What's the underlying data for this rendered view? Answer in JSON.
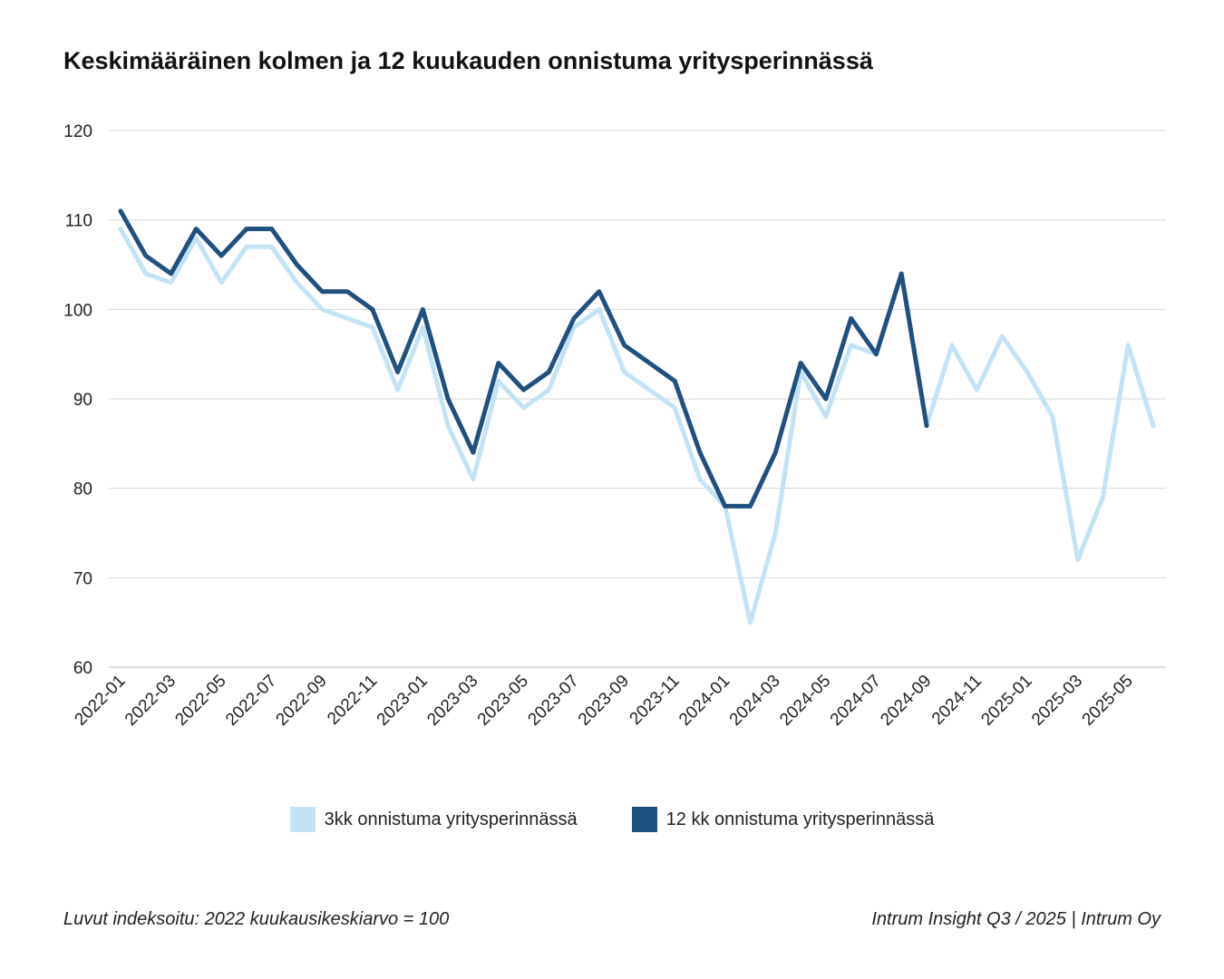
{
  "chart_data": {
    "type": "line",
    "title": "Keskimääräinen kolmen ja 12 kuukauden onnistuma yritysperinnässä",
    "xlabel": "",
    "ylabel": "",
    "ylim": [
      60,
      120
    ],
    "yticks": [
      60,
      70,
      80,
      90,
      100,
      110,
      120
    ],
    "x": [
      "2022-01",
      "2022-02",
      "2022-03",
      "2022-04",
      "2022-05",
      "2022-06",
      "2022-07",
      "2022-08",
      "2022-09",
      "2022-10",
      "2022-11",
      "2022-12",
      "2023-01",
      "2023-02",
      "2023-03",
      "2023-04",
      "2023-05",
      "2023-06",
      "2023-07",
      "2023-08",
      "2023-09",
      "2023-10",
      "2023-11",
      "2023-12",
      "2024-01",
      "2024-02",
      "2024-03",
      "2024-04",
      "2024-05",
      "2024-06",
      "2024-07",
      "2024-08",
      "2024-09",
      "2024-10",
      "2024-11",
      "2024-12",
      "2025-01",
      "2025-02",
      "2025-03",
      "2025-04",
      "2025-05",
      "2025-06"
    ],
    "xtick_labels": [
      "2022-01",
      "2022-03",
      "2022-05",
      "2022-07",
      "2022-09",
      "2022-11",
      "2023-01",
      "2023-03",
      "2023-05",
      "2023-07",
      "2023-09",
      "2023-11",
      "2024-01",
      "2024-03",
      "2024-05",
      "2024-07",
      "2024-09",
      "2024-11",
      "2025-01",
      "2025-03",
      "2025-05"
    ],
    "grid": true,
    "legend_position": "bottom",
    "series": [
      {
        "name": "3kk onnistuma yritysperinnässä",
        "color": "#c2e3f5",
        "values": [
          109,
          104,
          103,
          108,
          103,
          107,
          107,
          103,
          100,
          99,
          98,
          91,
          98,
          87,
          81,
          92,
          89,
          91,
          98,
          100,
          93,
          91,
          89,
          81,
          78,
          65,
          75,
          93,
          88,
          96,
          95,
          104,
          87,
          96,
          91,
          97,
          93,
          88,
          72,
          79,
          96,
          87
        ]
      },
      {
        "name": "12 kk onnistuma yritysperinnässä",
        "color": "#1f5180",
        "values": [
          111,
          106,
          104,
          109,
          106,
          109,
          109,
          105,
          102,
          102,
          100,
          93,
          100,
          90,
          84,
          94,
          91,
          93,
          99,
          102,
          96,
          94,
          92,
          84,
          78,
          78,
          84,
          94,
          90,
          99,
          95,
          104,
          87,
          null,
          null,
          null,
          null,
          null,
          null,
          null,
          null,
          null
        ]
      }
    ]
  },
  "footer": {
    "left": "Luvut indeksoitu: 2022 kuukausikeskiarvo = 100",
    "right": "Intrum Insight Q3 / 2025 | Intrum Oy"
  }
}
